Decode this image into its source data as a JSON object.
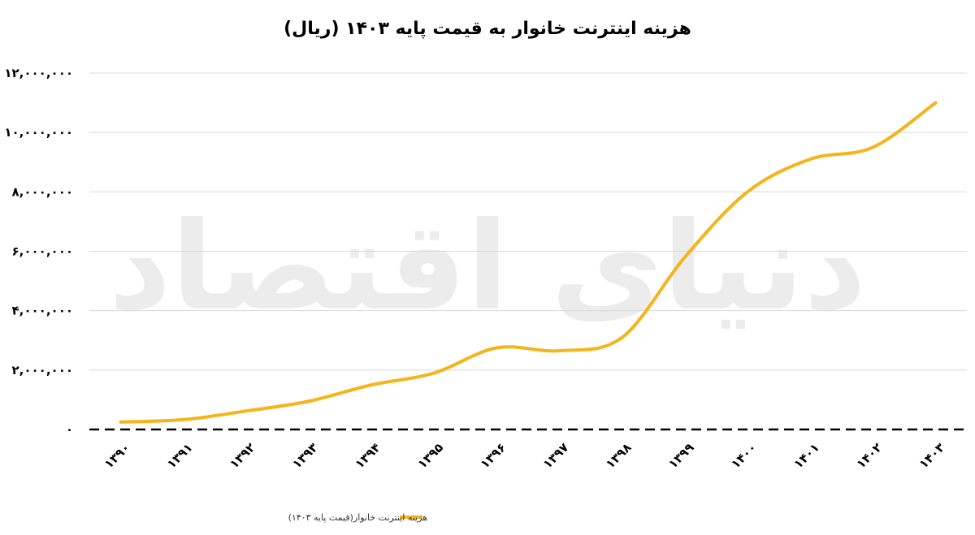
{
  "watermark": "دنیای اقتصاد",
  "chart_data": {
    "type": "line",
    "title": "هزینه اینترنت خانوار به قیمت پایه ۱۴۰۳ (ریال)",
    "xlabel": "",
    "ylabel": "",
    "categories": [
      "۱۳۹۰",
      "۱۳۹۱",
      "۱۳۹۲",
      "۱۳۹۳",
      "۱۳۹۴",
      "۱۳۹۵",
      "۱۳۹۶",
      "۱۳۹۷",
      "۱۳۹۸",
      "۱۳۹۹",
      "۱۴۰۰",
      "۱۴۰۱",
      "۱۴۰۲",
      "۱۴۰۳"
    ],
    "series": [
      {
        "name": "هزینه اینترنت خانوار(قیمت پایه ۱۴۰۳)",
        "color": "#F4B41A",
        "values": [
          250000,
          330000,
          620000,
          950000,
          1500000,
          1900000,
          2750000,
          2650000,
          3100000,
          5800000,
          8000000,
          9100000,
          9500000,
          11000000
        ]
      }
    ],
    "ylim": [
      0,
      12000000
    ],
    "yticks": [
      0,
      2000000,
      4000000,
      6000000,
      8000000,
      10000000,
      12000000
    ],
    "ytick_labels": [
      "۰",
      "۲,۰۰۰,۰۰۰",
      "۴,۰۰۰,۰۰۰",
      "۶,۰۰۰,۰۰۰",
      "۸,۰۰۰,۰۰۰",
      "۱۰,۰۰۰,۰۰۰",
      "۱۲,۰۰۰,۰۰۰"
    ],
    "grid": true,
    "legend": "bottom-center"
  }
}
